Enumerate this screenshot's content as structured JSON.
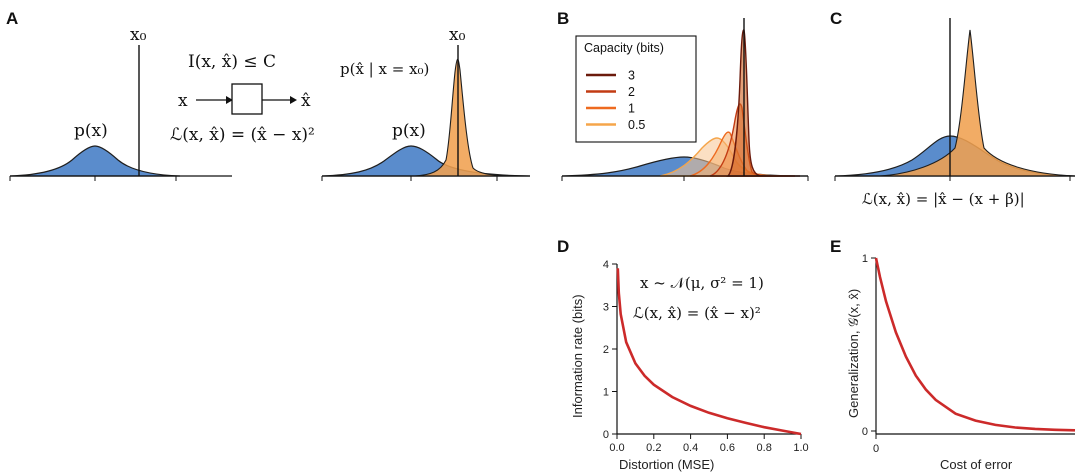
{
  "panels": {
    "A": "A",
    "B": "B",
    "C": "C",
    "D": "D",
    "E": "E"
  },
  "panel_a": {
    "px_label": "p(x)",
    "x0_label": "x₀",
    "channel_top": "I(x, x̂) ≤ C",
    "channel_in": "x",
    "channel_out": "x̂",
    "loss": "ℒ(x, x̂) = (x̂ − x)²",
    "posterior_label": "p(x̂ | x = x₀)",
    "px_label_2": "p(x)",
    "x0_label_2": "x₀"
  },
  "panel_b": {
    "legend_title": "Capacity (bits)",
    "legend_items": [
      {
        "label": "3",
        "color": "#6b1a0c"
      },
      {
        "label": "2",
        "color": "#c23b13"
      },
      {
        "label": "1",
        "color": "#ee6a1f"
      },
      {
        "label": "0.5",
        "color": "#f5a54a"
      }
    ]
  },
  "panel_c": {
    "loss": "ℒ(x, x̂) = |x̂ − (x + β)|"
  },
  "chart_data": [
    {
      "panel": "D",
      "type": "line",
      "xlabel": "Distortion (MSE)",
      "ylabel": "Information rate (bits)",
      "xlim": [
        0,
        1
      ],
      "ylim": [
        0,
        4
      ],
      "xticks": [
        "0.0",
        "0.2",
        "0.4",
        "0.6",
        "0.8",
        "1.0"
      ],
      "yticks": [
        "0",
        "1",
        "2",
        "3",
        "4"
      ],
      "annotation_1": "x ~ 𝒩(μ, σ² = 1)",
      "annotation_2": "ℒ(x, x̂) = (x̂ − x)²",
      "color": "#cc2a2a",
      "series": [
        {
          "x": [
            0.0045,
            0.01,
            0.02,
            0.05,
            0.1,
            0.15,
            0.2,
            0.3,
            0.4,
            0.5,
            0.6,
            0.7,
            0.8,
            0.9,
            1.0
          ],
          "values": [
            3.9,
            3.32,
            2.82,
            2.16,
            1.66,
            1.37,
            1.16,
            0.87,
            0.66,
            0.5,
            0.37,
            0.26,
            0.16,
            0.08,
            0.0
          ]
        }
      ]
    },
    {
      "panel": "E",
      "type": "line",
      "xlabel": "Cost of error",
      "ylabel": "Generalization, 𝒢(x, x̂)",
      "xticks": [
        "0"
      ],
      "yticks": [
        "0",
        "1"
      ],
      "ylim": [
        0,
        1
      ],
      "color": "#cc2a2a",
      "series": [
        {
          "x": [
            0,
            0.02,
            0.05,
            0.1,
            0.15,
            0.2,
            0.25,
            0.3,
            0.4,
            0.5,
            0.6,
            0.7,
            0.8,
            0.9,
            1.0
          ],
          "values": [
            1.0,
            0.89,
            0.75,
            0.57,
            0.43,
            0.32,
            0.24,
            0.18,
            0.1,
            0.06,
            0.035,
            0.02,
            0.012,
            0.007,
            0.004
          ]
        }
      ]
    }
  ]
}
